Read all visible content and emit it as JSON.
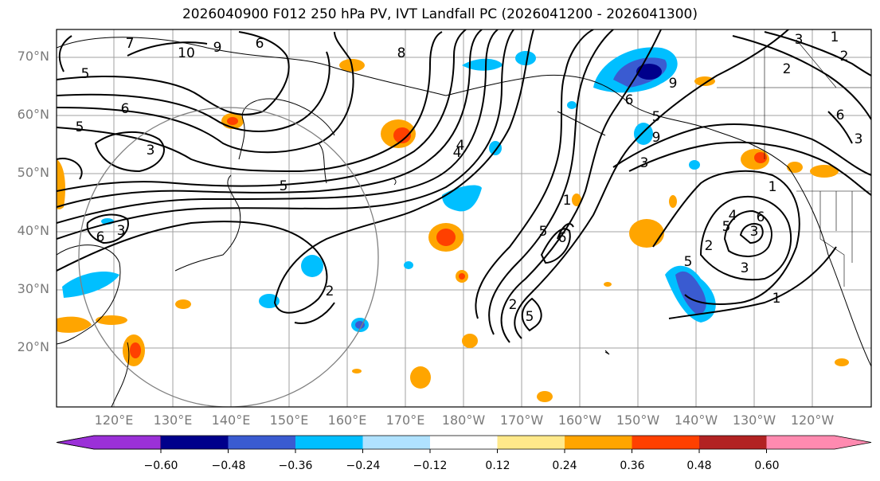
{
  "title": "2026040900 F012 250 hPa PV, IVT Landfall PC (2026041200 - 2026041300)",
  "map": {
    "lat_labels": [
      "70°N",
      "60°N",
      "50°N",
      "40°N",
      "30°N",
      "20°N"
    ],
    "lon_labels": [
      "120°E",
      "130°E",
      "140°E",
      "150°E",
      "160°E",
      "170°E",
      "180°W",
      "170°W",
      "160°W",
      "150°W",
      "140°W",
      "130°W",
      "120°W"
    ],
    "contour_labels": [
      "5",
      "6",
      "5",
      "3",
      "5",
      "2",
      "7",
      "10",
      "9",
      "6",
      "8",
      "4",
      "2",
      "5",
      "9",
      "6",
      "5",
      "9",
      "3",
      "1",
      "4",
      "5",
      "6",
      "3",
      "3",
      "1",
      "2",
      "5",
      "6",
      "3",
      "3",
      "2",
      "1",
      "2",
      "6",
      "3",
      "5",
      "6",
      "1",
      "4"
    ],
    "land_color": "#ffffff",
    "contour_color": "#000000",
    "grid_color": "#a0a0a0",
    "circle_color": "#808080"
  },
  "colorbar": {
    "ticks": [
      "−0.60",
      "−0.48",
      "−0.36",
      "−0.24",
      "−0.12",
      "0.12",
      "0.24",
      "0.36",
      "0.48",
      "0.60"
    ],
    "colors": [
      "#9b30d8",
      "#00008b",
      "#3a5bd1",
      "#00bfff",
      "#b0e2ff",
      "#ffffff",
      "#ffe98a",
      "#ffa500",
      "#ff4000",
      "#b22222",
      "#ff8ab0"
    ]
  }
}
